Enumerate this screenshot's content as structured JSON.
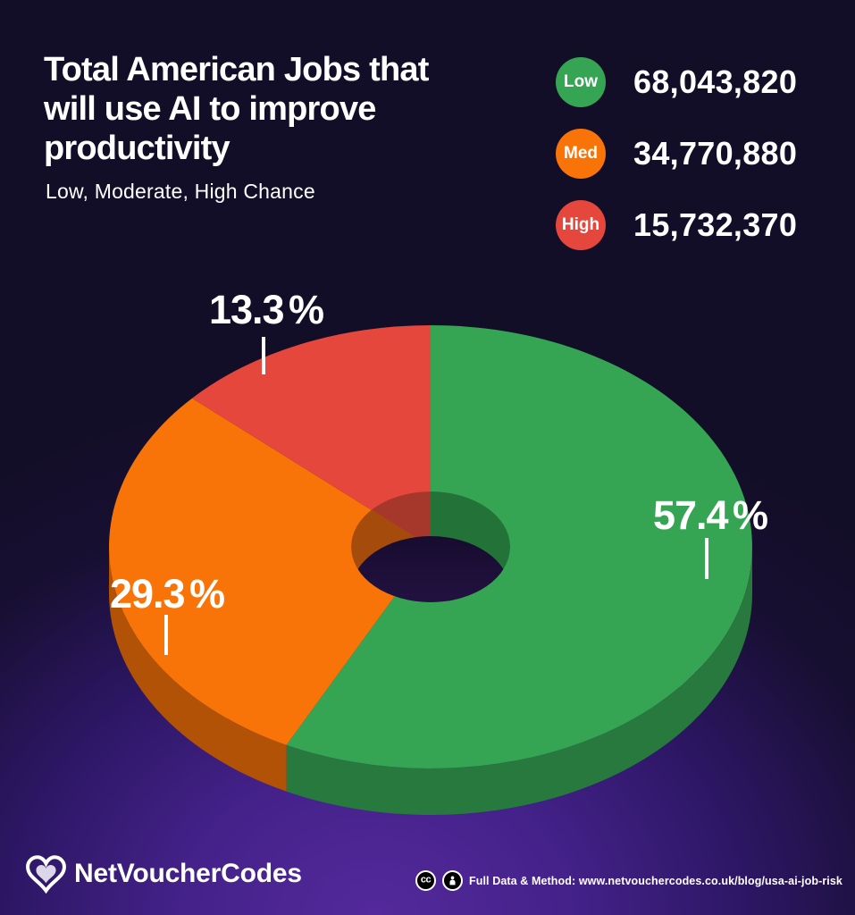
{
  "header": {
    "title_lines": [
      "Total American Jobs that",
      "will use AI to improve",
      "productivity"
    ],
    "subtitle": "Low, Moderate, High Chance"
  },
  "legend": {
    "items": [
      {
        "label": "Low",
        "value": "68,043,820"
      },
      {
        "label": "Med",
        "value": "34,770,880"
      },
      {
        "label": "High",
        "value": "15,732,370"
      }
    ]
  },
  "chart_data": {
    "type": "pie",
    "style": "3d-donut",
    "title": "Total American Jobs that will use AI to improve productivity",
    "subtitle": "Low, Moderate, High Chance",
    "categories": [
      "Low",
      "Med",
      "High"
    ],
    "values": [
      68043820,
      34770880,
      15732370
    ],
    "value_labels": [
      "68,043,820",
      "34,770,880",
      "15,732,370"
    ],
    "percentages": [
      57.4,
      29.3,
      13.3
    ],
    "percent_labels": [
      "57.4 %",
      "29.3 %",
      "13.3 %"
    ],
    "colors": [
      "#36a553",
      "#f87409",
      "#e6473c"
    ],
    "side_colors": [
      "#27793d",
      "#b25207",
      "#9c3328"
    ],
    "wall_colors": [
      "#237339",
      "#a54c0c",
      "#a5372b"
    ],
    "start_angle_deg": 0,
    "direction": "clockwise",
    "legend_position": "top-right"
  },
  "footer": {
    "brand": "NetVoucherCodes",
    "license_icons": [
      "cc-icon",
      "attribution-icon"
    ],
    "note": "Full Data & Method: www.netvouchercodes.co.uk/blog/usa-ai-job-risk"
  }
}
